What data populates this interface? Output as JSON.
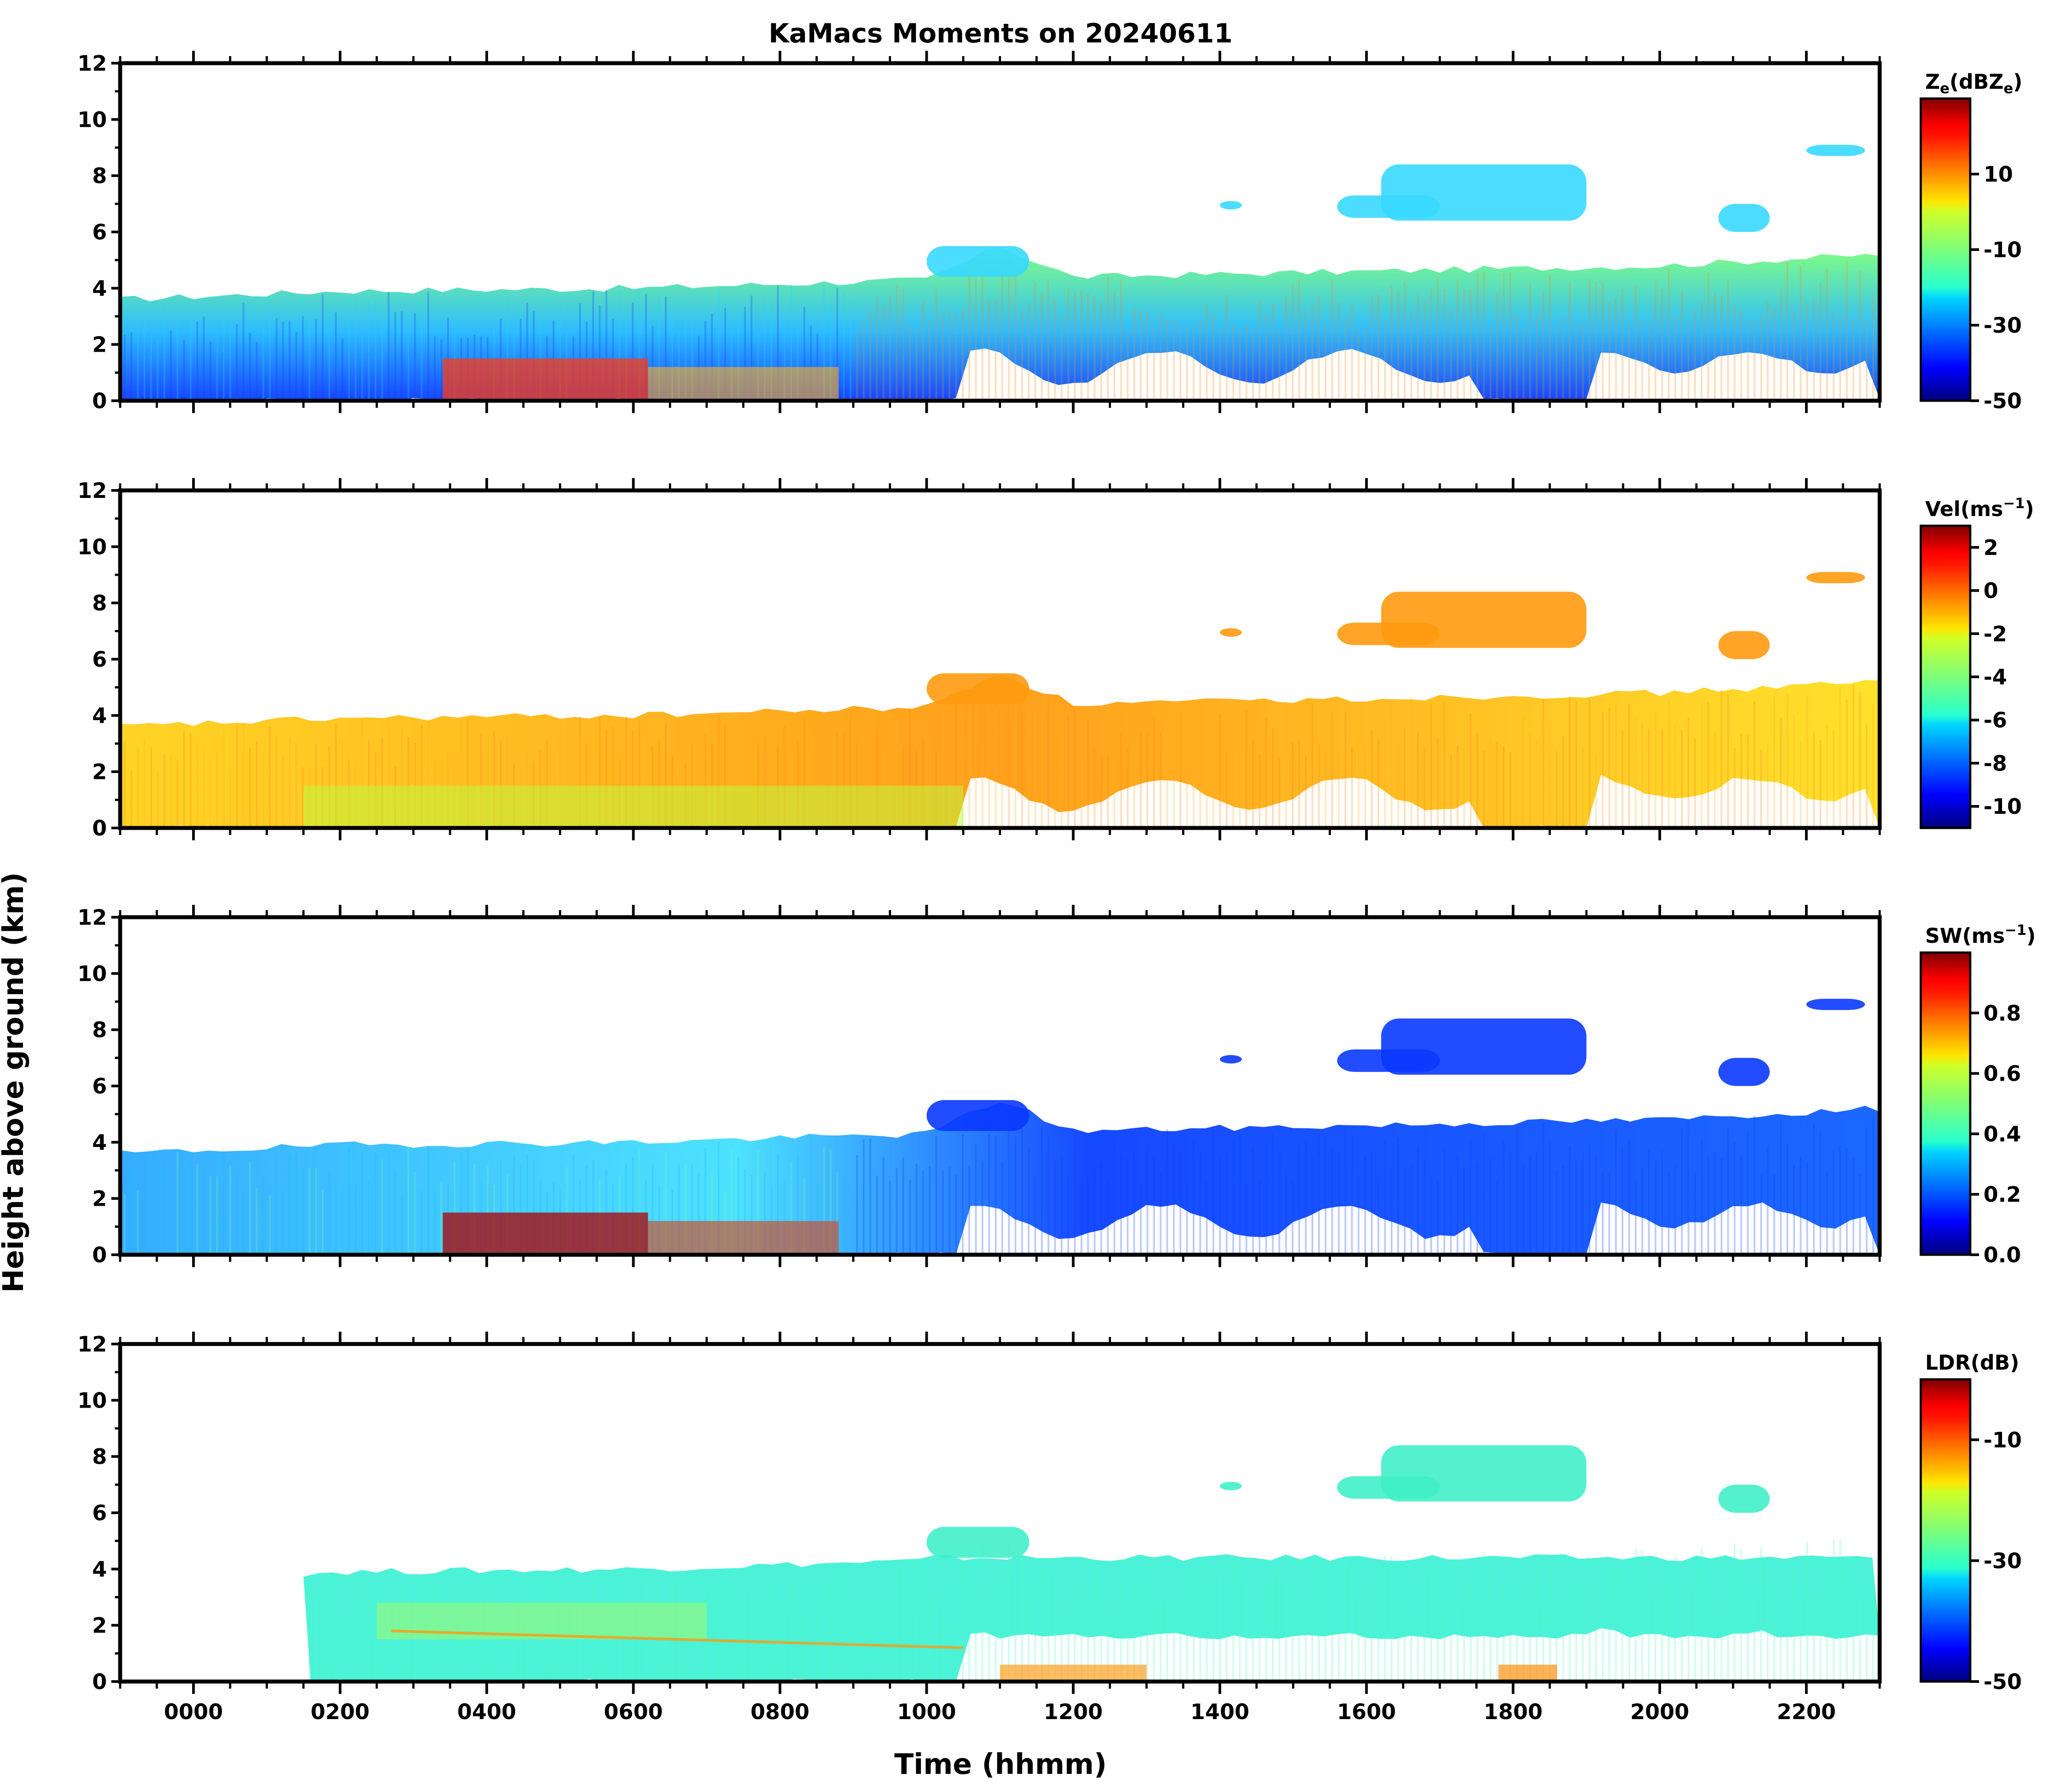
{
  "chart_data": {
    "type": "heatmap",
    "title": "KaMacs Moments on 20240611",
    "xlabel": "Time (hhmm)",
    "ylabel": "Height above ground (km)",
    "x_range": [
      -100,
      2300
    ],
    "x_ticks": [
      0,
      200,
      400,
      600,
      800,
      1000,
      1200,
      1400,
      1600,
      1800,
      2000,
      2200
    ],
    "x_tick_labels": [
      "0000",
      "0200",
      "0400",
      "0600",
      "0800",
      "1000",
      "1200",
      "1400",
      "1600",
      "1800",
      "2000",
      "2200"
    ],
    "y_range": [
      0,
      12
    ],
    "y_ticks": [
      0,
      2,
      4,
      6,
      8,
      10,
      12
    ],
    "y_tick_labels": [
      "0",
      "2",
      "4",
      "6",
      "8",
      "10",
      "12"
    ],
    "colormap": "jet",
    "panels": [
      {
        "name": "reflectivity",
        "colorbar_label": "Ze(dBZe)",
        "colorbar_label_main": "Z",
        "colorbar_label_sub": "e",
        "colorbar_label_rest": "(dBZ",
        "colorbar_label_sub2": "e",
        "colorbar_label_end": ")",
        "clim": [
          -50,
          30
        ],
        "colorbar_ticks": [
          10,
          -10,
          -30,
          -50
        ],
        "colorbar_tick_labels": [
          "10",
          "-10",
          "-30",
          "-50"
        ]
      },
      {
        "name": "velocity",
        "colorbar_label_main": "Vel(ms",
        "colorbar_label_sup": "−1",
        "colorbar_label_end": ")",
        "clim": [
          -11,
          3
        ],
        "colorbar_ticks": [
          2,
          0,
          -2,
          -4,
          -6,
          -8,
          -10
        ],
        "colorbar_tick_labels": [
          "2",
          "0",
          "-2",
          "-4",
          "-6",
          "-8",
          "-10"
        ]
      },
      {
        "name": "spectrum-width",
        "colorbar_label_main": "SW(ms",
        "colorbar_label_sup": "−1",
        "colorbar_label_end": ")",
        "clim": [
          0,
          1
        ],
        "colorbar_ticks": [
          0.8,
          0.6,
          0.4,
          0.2,
          0.0
        ],
        "colorbar_tick_labels": [
          "0.8",
          "0.6",
          "0.4",
          "0.2",
          "0.0"
        ]
      },
      {
        "name": "ldr",
        "colorbar_label_main": "LDR(dB)",
        "clim": [
          -50,
          0
        ],
        "colorbar_ticks": [
          -10,
          -30,
          -50
        ],
        "colorbar_tick_labels": [
          "-10",
          "-30",
          "-50"
        ]
      }
    ],
    "echo_features": {
      "cloud_top_km": [
        [
          -100,
          3.6
        ],
        [
          200,
          3.9
        ],
        [
          600,
          4.0
        ],
        [
          1000,
          4.3
        ],
        [
          1100,
          5.5
        ],
        [
          1200,
          4.4
        ],
        [
          1600,
          4.6
        ],
        [
          2000,
          4.8
        ],
        [
          2300,
          5.2
        ]
      ],
      "anvil_tops_km": [
        [
          1650,
          7.2
        ],
        [
          1800,
          8.3
        ],
        [
          1900,
          7.4
        ],
        [
          2100,
          7.0
        ],
        [
          2250,
          9.0
        ]
      ]
    }
  }
}
